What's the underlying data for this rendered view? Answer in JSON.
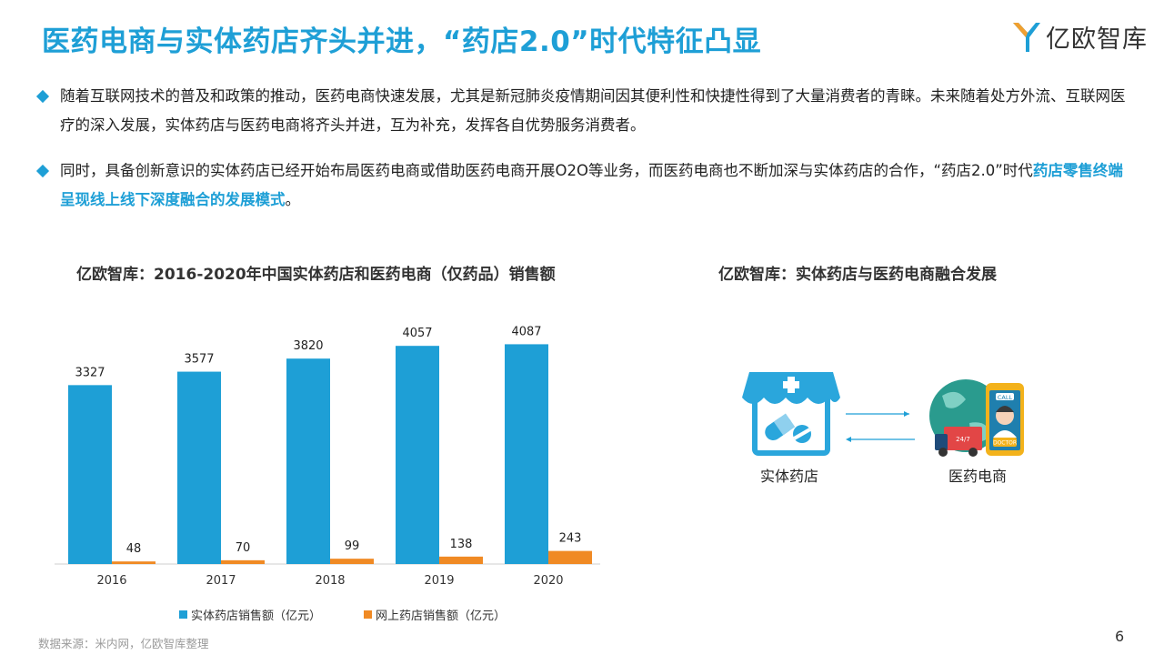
{
  "header": {
    "title": "医药电商与实体药店齐头并进，“药店2.0”时代特征凸显",
    "logo_text": "亿欧智库",
    "accent_color": "#1e9fd6"
  },
  "bullets": [
    {
      "text": "随着互联网技术的普及和政策的推动，医药电商快速发展，尤其是新冠肺炎疫情期间因其便利性和快捷性得到了大量消费者的青睐。未来随着处方外流、互联网医疗的深入发展，实体药店与医药电商将齐头并进，互为补充，发挥各自优势服务消费者。"
    },
    {
      "text_before": "同时，具备创新意识的实体药店已经开始布局医药电商或借助医药电商开展O2O等业务，而医药电商也不断加深与实体药店的合作，“药店2.0”时代",
      "highlight": "药店零售终端呈现线上线下深度融合的发展模式",
      "text_after": "。"
    }
  ],
  "left_chart": {
    "title": "亿欧智库：2016-2020年中国实体药店和医药电商（仅药品）销售额"
  },
  "right_diagram": {
    "title": "亿欧智库：实体药店与医药电商融合发展",
    "left_label": "实体药店",
    "right_label": "医药电商",
    "badge_call": "CALL",
    "badge_doctor": "DOCTOR",
    "badge_247": "24/7",
    "arrow_color": "#1e9fd6"
  },
  "chart_data": {
    "type": "bar",
    "categories": [
      "2016",
      "2017",
      "2018",
      "2019",
      "2020"
    ],
    "series": [
      {
        "name": "实体药店销售额（亿元）",
        "values": [
          3327,
          3577,
          3820,
          4057,
          4087
        ],
        "color": "#1e9fd6"
      },
      {
        "name": "网上药店销售额（亿元）",
        "values": [
          48,
          70,
          99,
          138,
          243
        ],
        "color": "#f08a24"
      }
    ],
    "ylim": [
      0,
      4500
    ],
    "grid": false,
    "legend_position": "bottom"
  },
  "footer": {
    "source": "数据来源：米内网，亿欧智库整理",
    "page": "6"
  }
}
